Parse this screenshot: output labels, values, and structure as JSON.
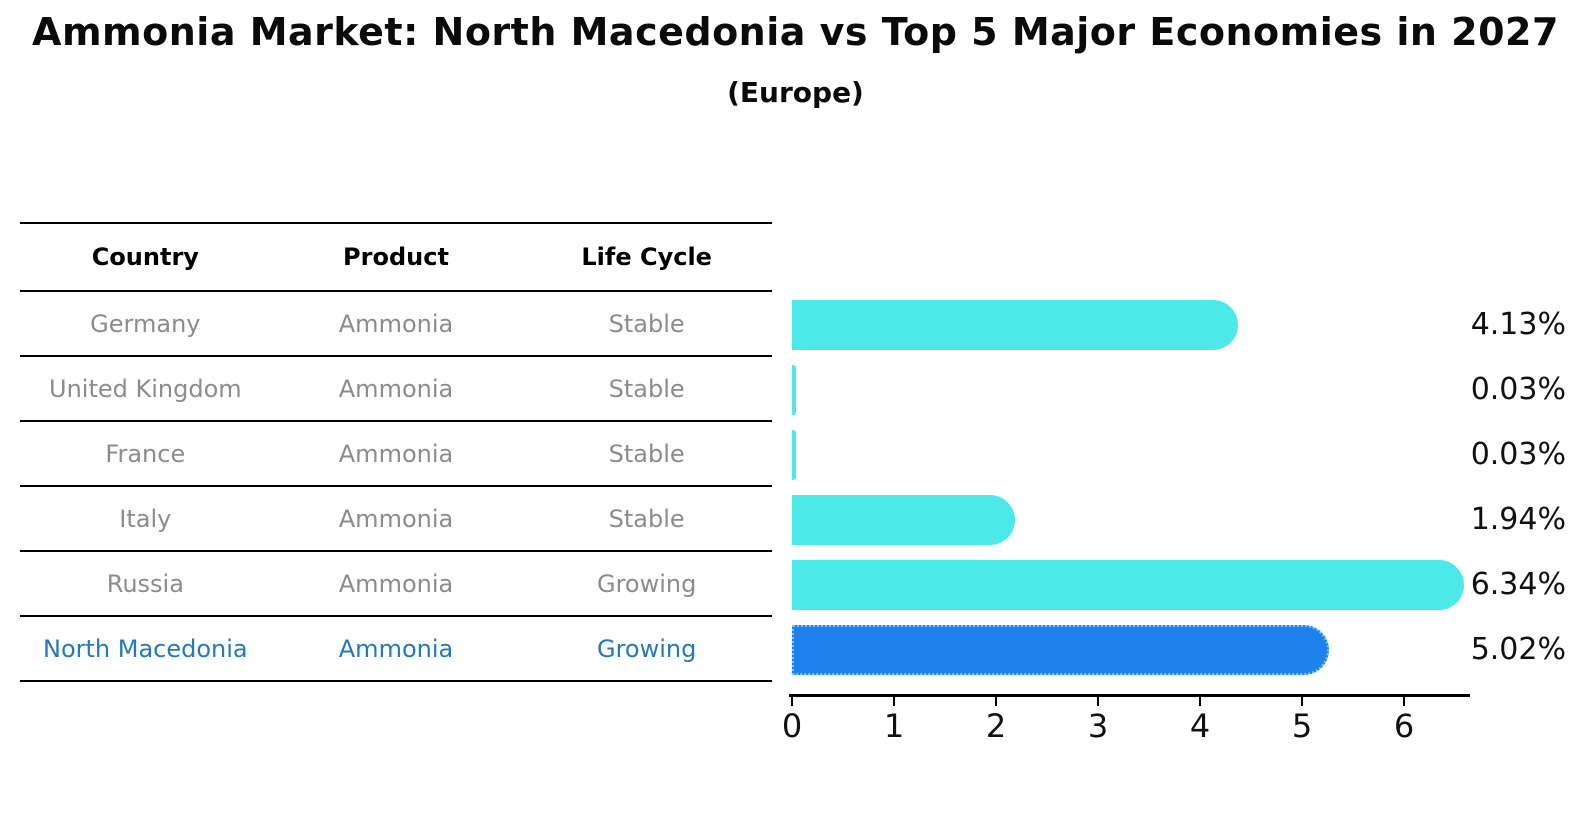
{
  "title": "Ammonia Market: North Macedonia vs Top 5 Major Economies in 2027",
  "subtitle": "(Europe)",
  "table": {
    "headers": {
      "country": "Country",
      "product": "Product",
      "life_cycle": "Life Cycle"
    },
    "rows": [
      {
        "country": "Germany",
        "product": "Ammonia",
        "life_cycle": "Stable",
        "share_label": "4.13%",
        "highlighted": false
      },
      {
        "country": "United Kingdom",
        "product": "Ammonia",
        "life_cycle": "Stable",
        "share_label": "0.03%",
        "highlighted": false
      },
      {
        "country": "France",
        "product": "Ammonia",
        "life_cycle": "Stable",
        "share_label": "0.03%",
        "highlighted": false
      },
      {
        "country": "Italy",
        "product": "Ammonia",
        "life_cycle": "Stable",
        "share_label": "1.94%",
        "highlighted": false
      },
      {
        "country": "Russia",
        "product": "Ammonia",
        "life_cycle": "Growing",
        "share_label": "6.34%",
        "highlighted": false
      },
      {
        "country": "North Macedonia",
        "product": "Ammonia",
        "life_cycle": "Growing",
        "share_label": "5.02%",
        "highlighted": true
      }
    ]
  },
  "chart_data": {
    "type": "bar",
    "orientation": "horizontal",
    "title": "Ammonia Market: North Macedonia vs Top 5 Major Economies in 2027",
    "subtitle": "(Europe)",
    "categories": [
      "Germany",
      "United Kingdom",
      "France",
      "Italy",
      "Russia",
      "North Macedonia"
    ],
    "values": [
      4.13,
      0.03,
      0.03,
      1.94,
      6.34,
      5.02
    ],
    "value_labels": [
      "4.13%",
      "0.03%",
      "0.03%",
      "1.94%",
      "6.34%",
      "5.02%"
    ],
    "unit": "%",
    "xlabel": "",
    "ylabel": "",
    "xlim": [
      0,
      6.65
    ],
    "x_ticks": [
      0,
      1,
      2,
      3,
      4,
      5,
      6
    ],
    "grid": false,
    "legend": "none",
    "highlight_index": 5,
    "colors": {
      "bar": "#4DE8E8",
      "highlight_bar": "#1E80EB",
      "highlight_border": "#7CC4F6",
      "highlight_text": "#2479BE",
      "table_text": "#8C8C8C",
      "header_text": "#000000",
      "label_text": "#111111",
      "axis": "#000000"
    }
  }
}
